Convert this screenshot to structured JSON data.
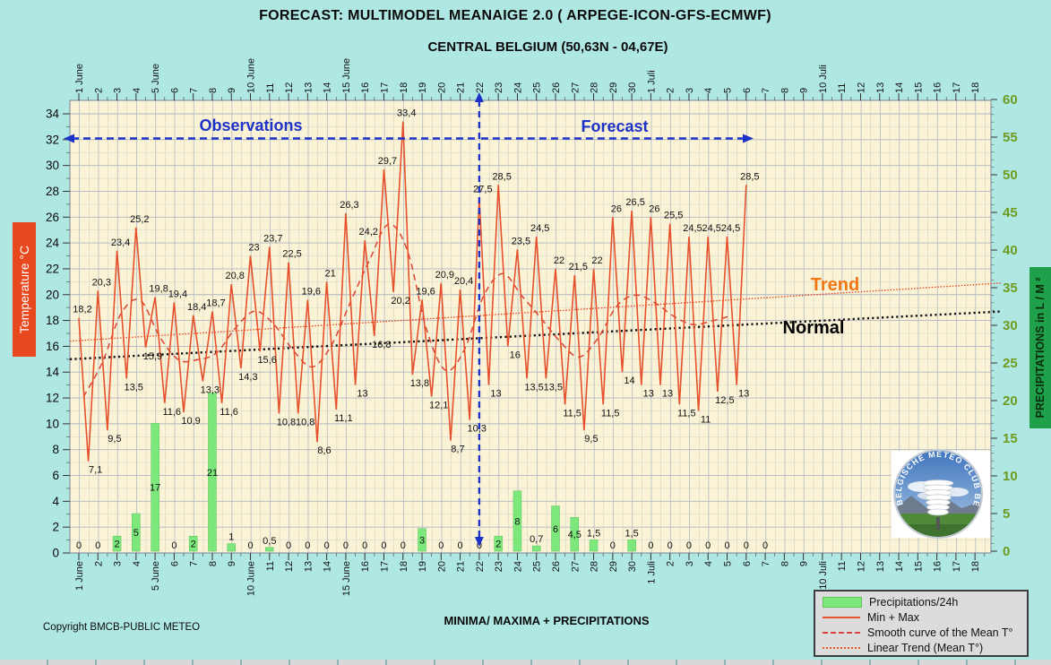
{
  "title": "FORECAST: MULTIMODEL MEANAIGE 2.0  ( ARPEGE-ICON-GFS-ECMWF)",
  "subtitle": "CENTRAL BELGIUM (50,63N - 04,67E)",
  "footer": {
    "copyright": "Copyright BMCB-PUBLIC METEO",
    "caption": "MINIMA/ MAXIMA + PRECIPITATIONS"
  },
  "axes": {
    "temp": {
      "label": "Temperature  °C",
      "min": 0,
      "max": 34,
      "step": 2,
      "box_color": "#E8481E"
    },
    "precip": {
      "label": "PRECIPITATIONS in L / M ²",
      "min": 0,
      "max": 60,
      "step": 5,
      "box_color": "#1FA14B",
      "tick_color": "#6F9A1F"
    }
  },
  "annotations": {
    "observations": "Observations",
    "forecast": "Forecast",
    "trend": "Trend",
    "normal": "Normal"
  },
  "legend": {
    "items": [
      {
        "label": "Precipitations/24h",
        "swatch": "bar"
      },
      {
        "label": "Min + Max",
        "swatch": "solid"
      },
      {
        "label": "Smooth curve of the Mean T°",
        "swatch": "dashed"
      },
      {
        "label": "Linear Trend  (Mean T°)",
        "swatch": "dotted"
      }
    ]
  },
  "logo_text": "BELGISCHE METEO CLUB BELGE",
  "colors": {
    "background": "#AFE7E3",
    "plot_background": "#FBF3D5",
    "minmax_line": "#E5512C",
    "smooth_line": "#DD4335",
    "trend_line": "#E8401F",
    "normal_line": "#111111",
    "bars": "#7CE87C",
    "blue_annotation": "#1D32C8",
    "trend_label": "#F07714",
    "precip_axis_text": "#6F9A1F"
  },
  "chart_data": {
    "type": "line",
    "x_labels": [
      "1 June",
      "2",
      "3",
      "4",
      "5 June",
      "6",
      "7",
      "8",
      "9",
      "10 June",
      "11",
      "12",
      "13",
      "14",
      "15 June",
      "16",
      "17",
      "18",
      "19",
      "20",
      "21",
      "22",
      "23",
      "24",
      "25",
      "26",
      "27",
      "28",
      "29",
      "30",
      "1 Juli",
      "2",
      "3",
      "4",
      "5",
      "6",
      "7",
      "8",
      "9",
      "10 Juli",
      "11",
      "12",
      "13",
      "14",
      "15",
      "16",
      "17",
      "18"
    ],
    "series": [
      {
        "name": "Max temperature",
        "type": "line",
        "values": [
          18.2,
          20.3,
          23.4,
          25.2,
          19.8,
          19.4,
          18.4,
          18.7,
          20.8,
          23,
          23.7,
          22.5,
          19.6,
          21,
          26.3,
          24.2,
          29.7,
          33.4,
          19.6,
          20.9,
          20.4,
          27.5,
          28.5,
          23.5,
          24.5,
          22,
          21.5,
          22,
          26,
          26.5,
          26,
          25.5,
          24.5,
          24.5,
          24.5,
          28.5
        ]
      },
      {
        "name": "Min temperature",
        "type": "line",
        "values": [
          7.1,
          9.5,
          13.5,
          15.9,
          11.6,
          10.9,
          13.3,
          11.6,
          14.3,
          15.6,
          10.8,
          10.8,
          8.6,
          11.1,
          13,
          16.8,
          20.2,
          13.8,
          12.1,
          8.7,
          10.3,
          13,
          16,
          13.5,
          13.5,
          11.5,
          9.5,
          11.5,
          14,
          13,
          13,
          11.5,
          11,
          12.5,
          13,
          null
        ]
      },
      {
        "name": "Precipitations/24h",
        "type": "bar",
        "values": [
          0,
          0,
          2,
          5,
          17,
          0,
          2,
          21,
          1,
          0,
          0.5,
          0,
          0,
          0,
          0,
          0,
          0,
          0,
          3,
          0,
          0,
          0,
          2,
          8,
          0.7,
          6,
          4.5,
          1.5,
          0,
          1.5,
          0,
          0,
          0,
          0,
          0,
          0,
          0
        ]
      }
    ],
    "trend_line": {
      "start_temp": 16.4,
      "end_temp": 20.9
    },
    "normal_line": {
      "start_temp": 15.0,
      "end_temp": 18.7
    },
    "temp_axis_range": [
      0,
      34
    ],
    "precip_axis_range": [
      0,
      60
    ],
    "forecast_split_index": 21
  }
}
